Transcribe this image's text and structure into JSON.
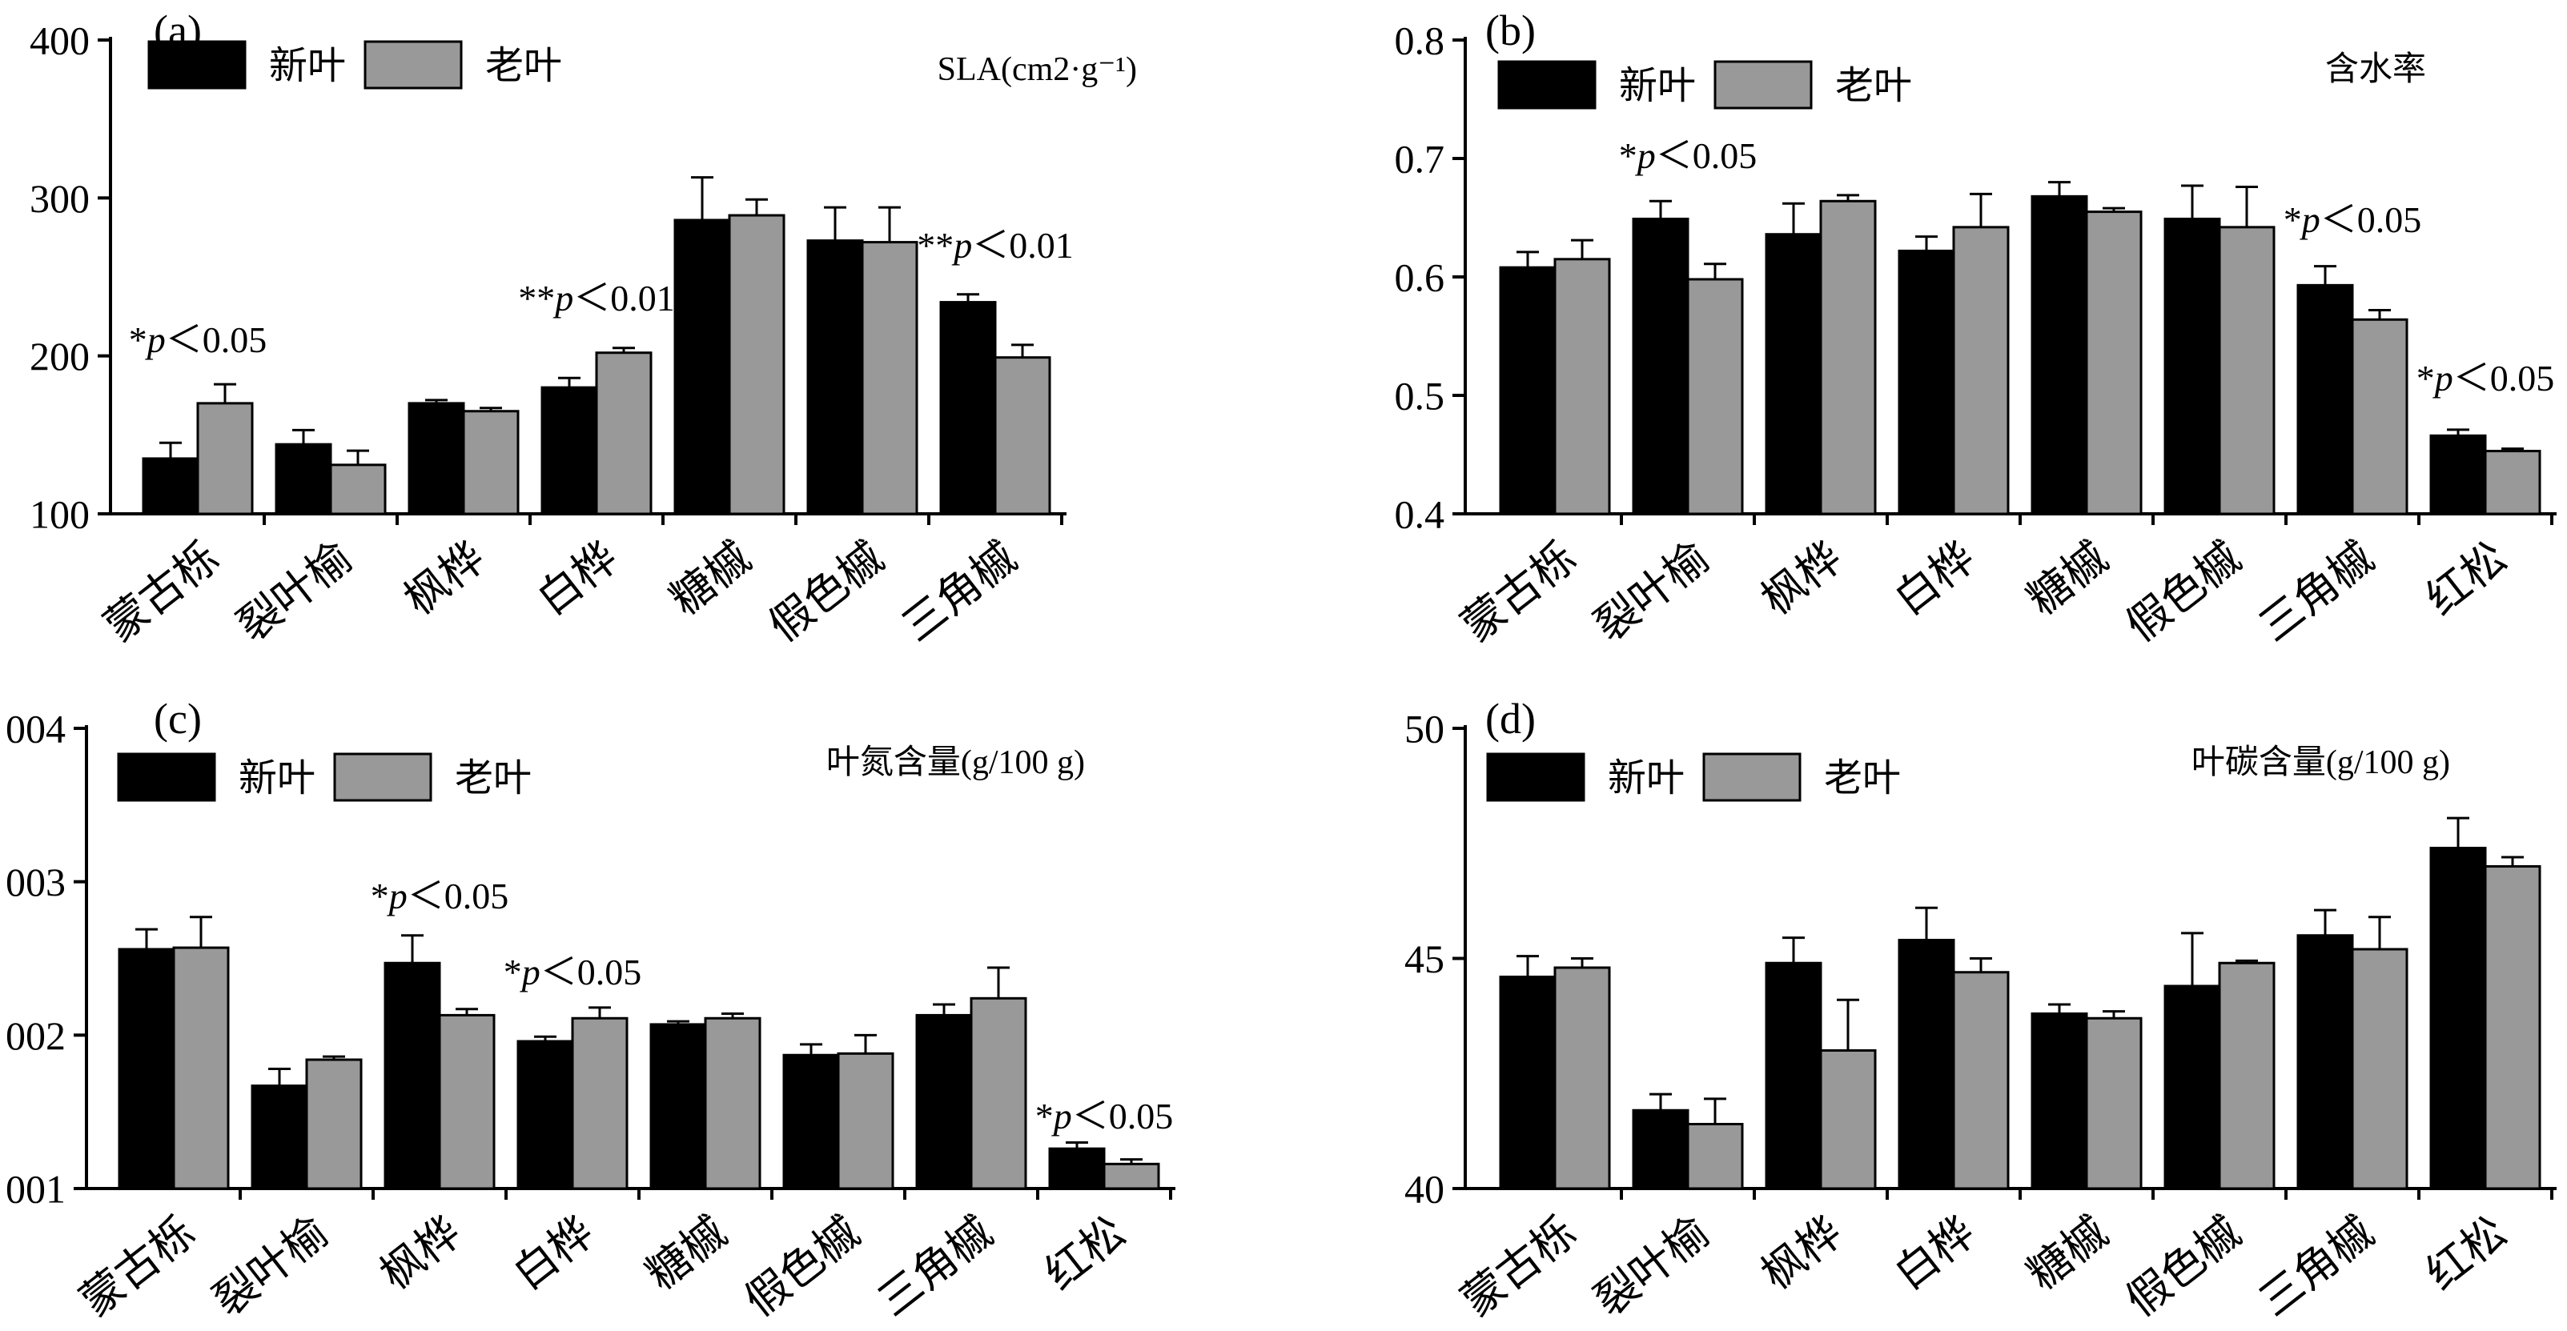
{
  "colors": {
    "new_leaf": "#000000",
    "old_leaf": "#999999",
    "axis": "#000000"
  },
  "chart_data": [
    {
      "id": "a",
      "type": "bar",
      "panel_label": "(a)",
      "title": "SLA(cm2·g⁻¹)",
      "ylim": [
        100,
        400
      ],
      "yticks": [
        "100",
        "200",
        "300",
        "400"
      ],
      "ytick_values": [
        100,
        200,
        300,
        400
      ],
      "categories": [
        "蒙古栎",
        "裂叶榆",
        "枫桦",
        "白桦",
        "糖槭",
        "假色槭",
        "三角槭"
      ],
      "series": [
        {
          "name": "新叶",
          "values": [
            135,
            144,
            170,
            180,
            286,
            273,
            234
          ],
          "errors": [
            10,
            9,
            2,
            6,
            27,
            21,
            5
          ]
        },
        {
          "name": "老叶",
          "values": [
            170,
            131,
            165,
            202,
            289,
            272,
            199
          ],
          "errors": [
            12,
            9,
            2,
            3,
            10,
            22,
            8
          ]
        }
      ],
      "annotations": [
        {
          "text": "*p＜0.05",
          "category": 0
        },
        {
          "text": "**p＜0.01",
          "category": 3
        },
        {
          "text": "**p＜0.01",
          "category": 6
        }
      ]
    },
    {
      "id": "b",
      "type": "bar",
      "panel_label": "(b)",
      "title": "含水率",
      "ylim": [
        0.4,
        0.8
      ],
      "yticks": [
        "0.4",
        "0.5",
        "0.6",
        "0.7",
        "0.8"
      ],
      "ytick_values": [
        0.4,
        0.5,
        0.6,
        0.7,
        0.8
      ],
      "categories": [
        "蒙古栎",
        "裂叶榆",
        "枫桦",
        "白桦",
        "糖槭",
        "假色槭",
        "三角槭",
        "红松"
      ],
      "series": [
        {
          "name": "新叶",
          "values": [
            0.608,
            0.649,
            0.636,
            0.622,
            0.668,
            0.649,
            0.593,
            0.466
          ],
          "errors": [
            0.013,
            0.015,
            0.026,
            0.012,
            0.012,
            0.028,
            0.016,
            0.005
          ]
        },
        {
          "name": "老叶",
          "values": [
            0.615,
            0.598,
            0.664,
            0.642,
            0.655,
            0.642,
            0.564,
            0.453
          ],
          "errors": [
            0.016,
            0.013,
            0.005,
            0.028,
            0.003,
            0.034,
            0.008,
            0.002
          ]
        }
      ],
      "annotations": [
        {
          "text": "*p＜0.05",
          "category": 1
        },
        {
          "text": "*p＜0.05",
          "category": 6
        },
        {
          "text": "*p＜0.05",
          "category": 7
        }
      ]
    },
    {
      "id": "c",
      "type": "bar",
      "panel_label": "(c)",
      "title": "叶氮含量(g/100 g)",
      "ylim": [
        1,
        4
      ],
      "yticks": [
        "001",
        "002",
        "003",
        "004"
      ],
      "ytick_values": [
        1,
        2,
        3,
        4
      ],
      "categories": [
        "蒙古栎",
        "裂叶榆",
        "枫桦",
        "白桦",
        "糖槭",
        "假色槭",
        "三角槭",
        "红松"
      ],
      "series": [
        {
          "name": "新叶",
          "values": [
            2.56,
            1.67,
            2.47,
            1.96,
            2.07,
            1.87,
            2.13,
            1.26
          ],
          "errors": [
            0.13,
            0.11,
            0.18,
            0.03,
            0.02,
            0.07,
            0.07,
            0.04
          ]
        },
        {
          "name": "老叶",
          "values": [
            2.57,
            1.84,
            2.13,
            2.11,
            2.11,
            1.88,
            2.24,
            1.16
          ],
          "errors": [
            0.2,
            0.02,
            0.04,
            0.07,
            0.03,
            0.12,
            0.2,
            0.03
          ]
        }
      ],
      "annotations": [
        {
          "text": "*p＜0.05",
          "category": 2
        },
        {
          "text": "*p＜0.05",
          "category": 3
        },
        {
          "text": "*p＜0.05",
          "category": 7
        }
      ]
    },
    {
      "id": "d",
      "type": "bar",
      "panel_label": "(d)",
      "title": "叶碳含量(g/100 g)",
      "ylim": [
        40,
        50
      ],
      "yticks": [
        "40",
        "45",
        "50"
      ],
      "ytick_values": [
        40,
        45,
        50
      ],
      "categories": [
        "蒙古栎",
        "裂叶榆",
        "枫桦",
        "白桦",
        "糖槭",
        "假色槭",
        "三角槭",
        "红松"
      ],
      "series": [
        {
          "name": "新叶",
          "values": [
            44.6,
            41.7,
            44.9,
            45.4,
            43.8,
            44.4,
            45.5,
            47.4
          ],
          "errors": [
            0.45,
            0.35,
            0.55,
            0.7,
            0.2,
            1.15,
            0.55,
            0.65
          ]
        },
        {
          "name": "老叶",
          "values": [
            44.8,
            41.4,
            43.0,
            44.7,
            43.7,
            44.9,
            45.2,
            47.0
          ],
          "errors": [
            0.2,
            0.55,
            1.1,
            0.3,
            0.15,
            0.05,
            0.7,
            0.2
          ]
        }
      ],
      "annotations": []
    }
  ]
}
